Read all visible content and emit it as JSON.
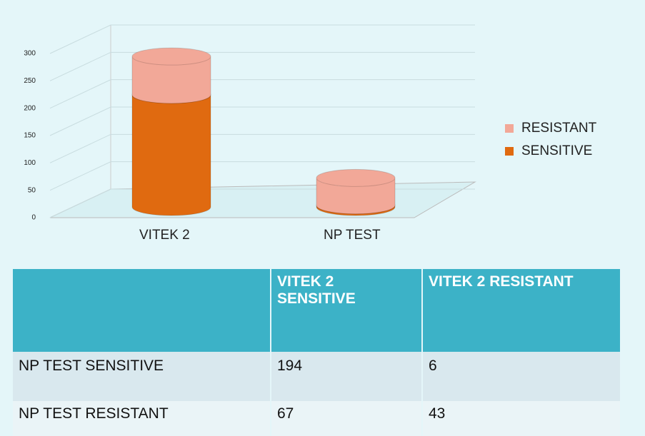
{
  "chart_data": {
    "type": "bar",
    "categories": [
      "VITEK 2",
      "NP TEST"
    ],
    "series": [
      {
        "name": "SENSITIVE",
        "color": "#e06a10",
        "values": [
          205,
          3
        ]
      },
      {
        "name": "RESISTANT",
        "color": "#f2a898",
        "values": [
          70,
          50
        ]
      }
    ],
    "ylim": [
      0,
      300
    ],
    "yticks": [
      0,
      50,
      100,
      150,
      200,
      250,
      300
    ],
    "grid": true,
    "legend": "right"
  },
  "table": {
    "header": [
      "VITEK 2 SENSITIVE",
      "VITEK 2 RESISTANT"
    ],
    "rows": [
      [
        "NP TEST SENSITIVE",
        "194",
        "6"
      ],
      [
        "NP TEST RESISTANT",
        "67",
        "43"
      ]
    ]
  }
}
